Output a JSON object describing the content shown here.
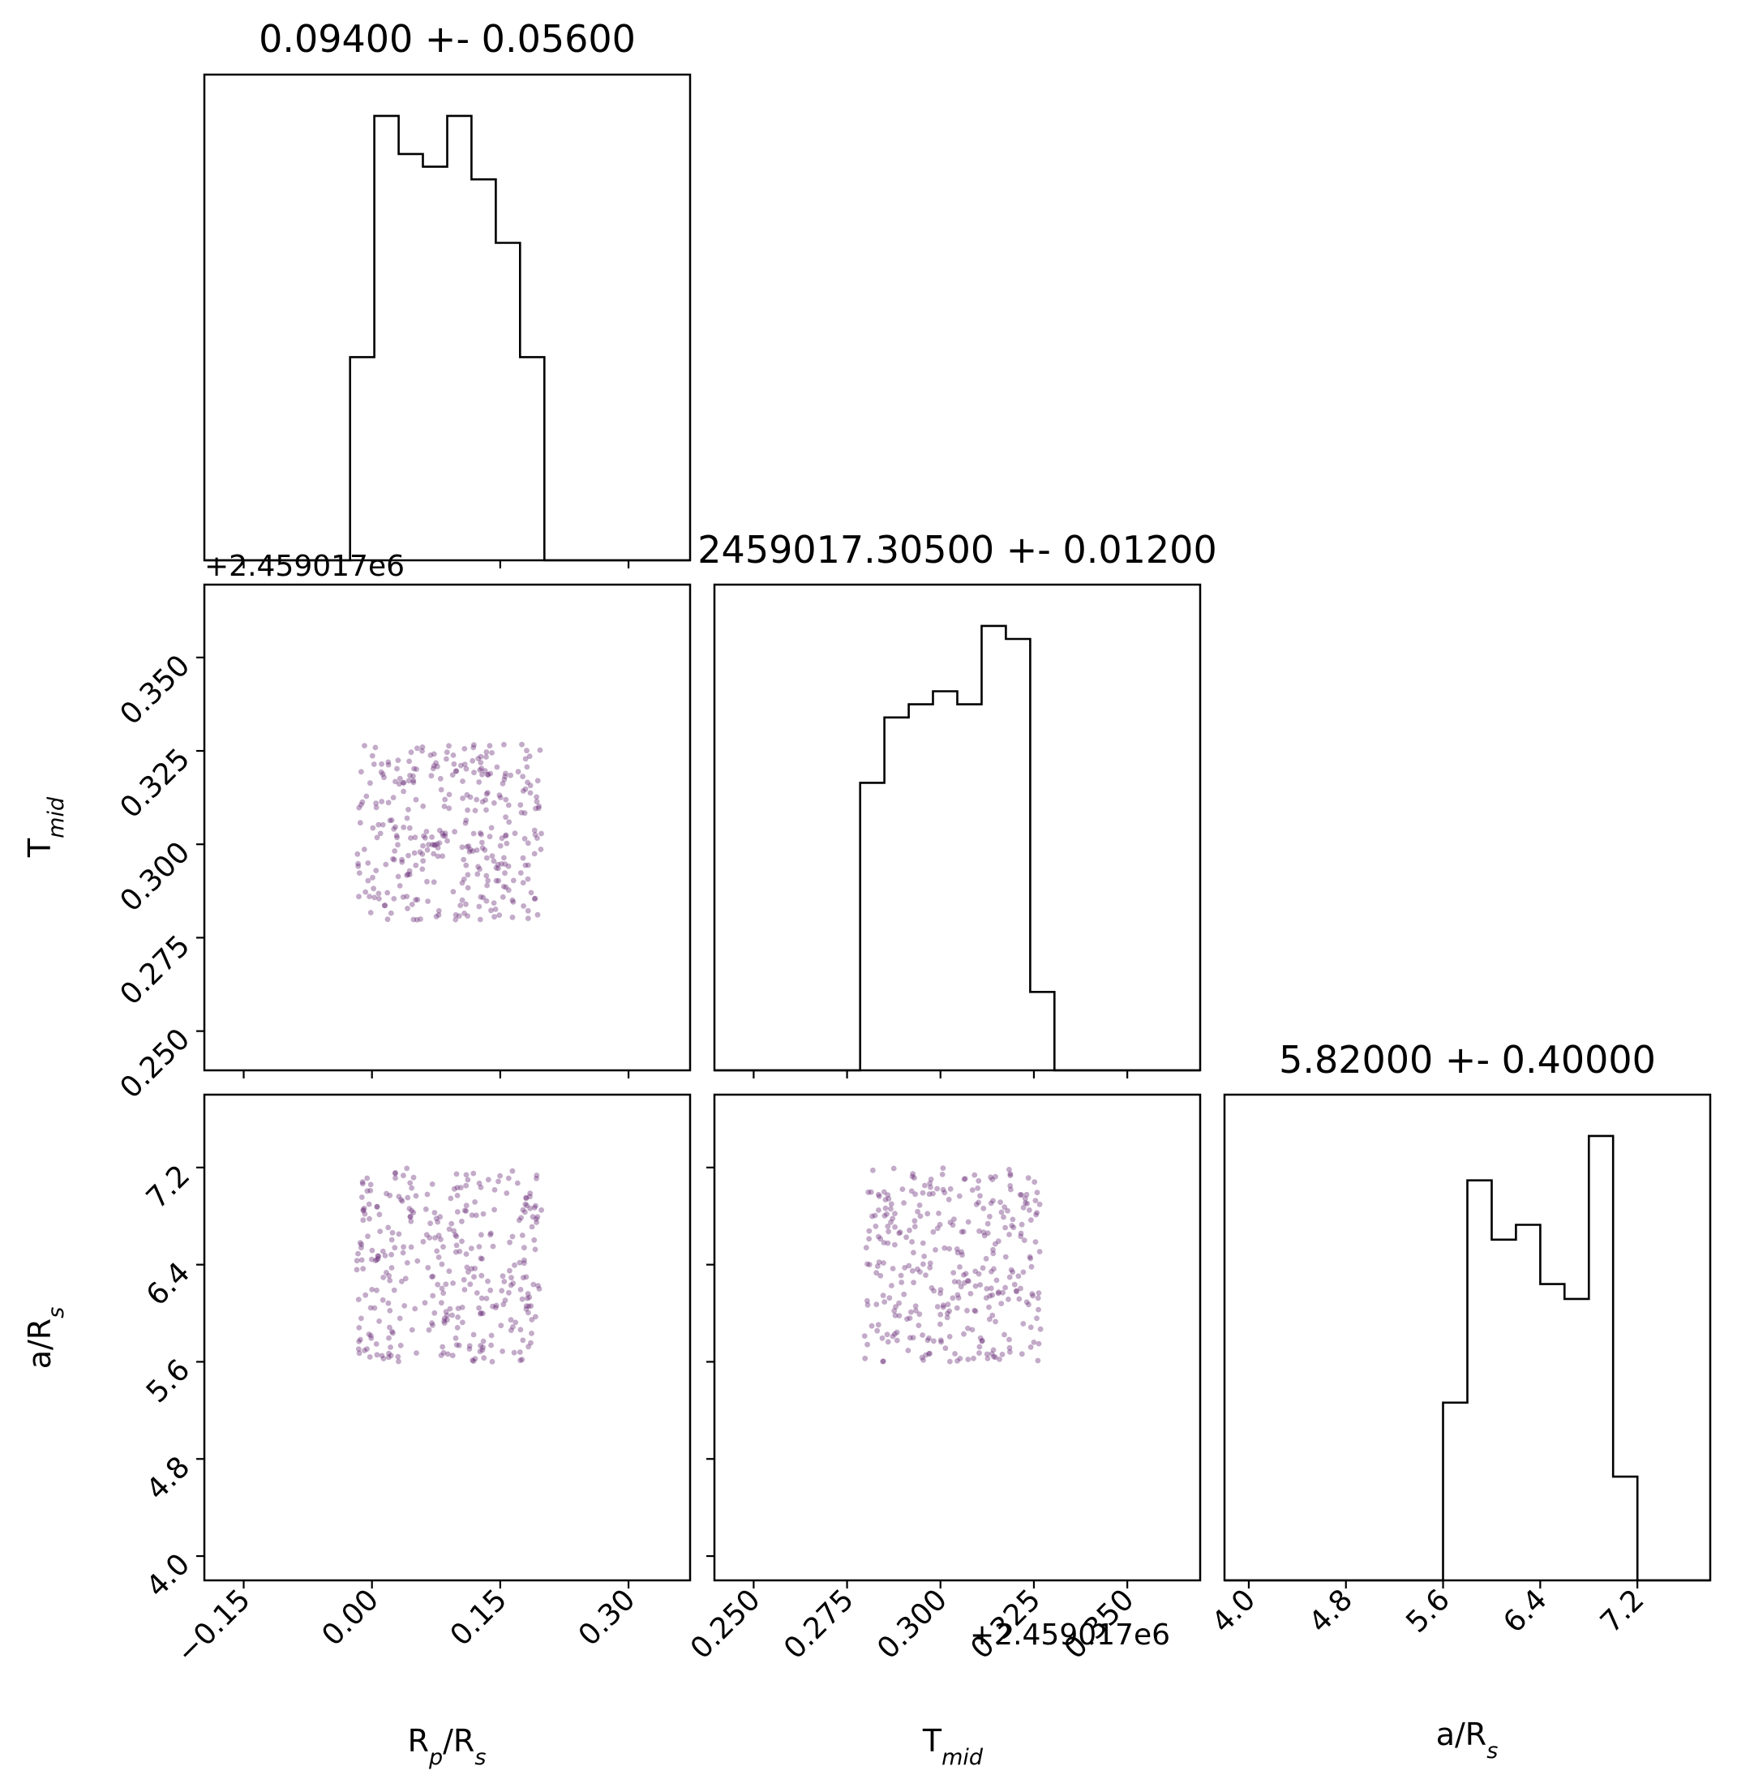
{
  "chart_data": {
    "type": "corner",
    "colors": {
      "scatter": "#6a2c78",
      "line": "#000000"
    },
    "parameters": [
      {
        "label": "R_p/R_s",
        "label_main": "R",
        "label_sub": "p",
        "label_rest": "/R",
        "label_sub2": "s",
        "lim": [
          -0.196,
          0.372
        ],
        "ticks": [
          -0.15,
          0.0,
          0.15,
          0.3
        ],
        "tick_labels": [
          "−0.15",
          "0.00",
          "0.15",
          "0.30"
        ],
        "offset_text": "",
        "range": [
          -0.0182,
          0.199
        ]
      },
      {
        "label": "T_mid",
        "label_main": "T",
        "label_sub": "mid",
        "label_rest": "",
        "label_sub2": "",
        "lim": [
          0.2395,
          0.3695
        ],
        "ticks": [
          0.25,
          0.275,
          0.3,
          0.325,
          0.35
        ],
        "tick_labels": [
          "0.250",
          "0.275",
          "0.300",
          "0.325",
          "0.350"
        ],
        "offset_text": "+2.459017e6",
        "range": [
          0.2796,
          0.3268
        ]
      },
      {
        "label": "a/R_s",
        "label_main": "a/R",
        "label_sub": "s",
        "label_rest": "",
        "label_sub2": "",
        "lim": [
          3.8,
          7.8
        ],
        "ticks": [
          4.0,
          4.8,
          5.6,
          6.4,
          7.2
        ],
        "tick_labels": [
          "4.0",
          "4.8",
          "5.6",
          "6.4",
          "7.2"
        ],
        "offset_text": "",
        "range": [
          5.6,
          7.2
        ]
      }
    ],
    "titles": [
      "0.09400 +- 0.05600",
      "2459017.30500 +- 0.01200",
      "5.82000 +- 0.40000"
    ],
    "histograms": [
      {
        "edges": [
          -0.196,
          -0.1676,
          -0.1392,
          -0.1108,
          -0.0824,
          -0.054,
          -0.0256,
          0.0028,
          0.0312,
          0.0596,
          0.088,
          0.1164,
          0.1448,
          0.1732,
          0.2016,
          0.23,
          0.2584,
          0.2868,
          0.3152,
          0.3436,
          0.372
        ],
        "counts": [
          0,
          0,
          0,
          0,
          0,
          0,
          16,
          35,
          32,
          31,
          35,
          30,
          25,
          16,
          0,
          0,
          0,
          0,
          0,
          0
        ]
      },
      {
        "edges": [
          0.2395,
          0.246,
          0.2525,
          0.259,
          0.2655,
          0.272,
          0.2785,
          0.285,
          0.2915,
          0.298,
          0.3045,
          0.311,
          0.3175,
          0.324,
          0.3305,
          0.337,
          0.3435,
          0.35,
          0.3565,
          0.363,
          0.3695
        ],
        "counts": [
          0,
          0,
          0,
          0,
          0,
          0,
          22,
          27,
          28,
          29,
          28,
          34,
          33,
          6,
          0,
          0,
          0,
          0,
          0,
          0
        ]
      },
      {
        "edges": [
          3.8,
          4.0,
          4.2,
          4.4,
          4.6,
          4.8,
          5.0,
          5.2,
          5.4,
          5.6,
          5.8,
          6.0,
          6.2,
          6.4,
          6.6,
          6.8,
          7.0,
          7.2,
          7.4,
          7.6,
          7.8
        ],
        "counts": [
          0,
          0,
          0,
          0,
          0,
          0,
          0,
          0,
          0,
          12,
          27,
          23,
          24,
          20,
          19,
          30,
          7,
          0,
          0,
          0
        ]
      }
    ]
  }
}
